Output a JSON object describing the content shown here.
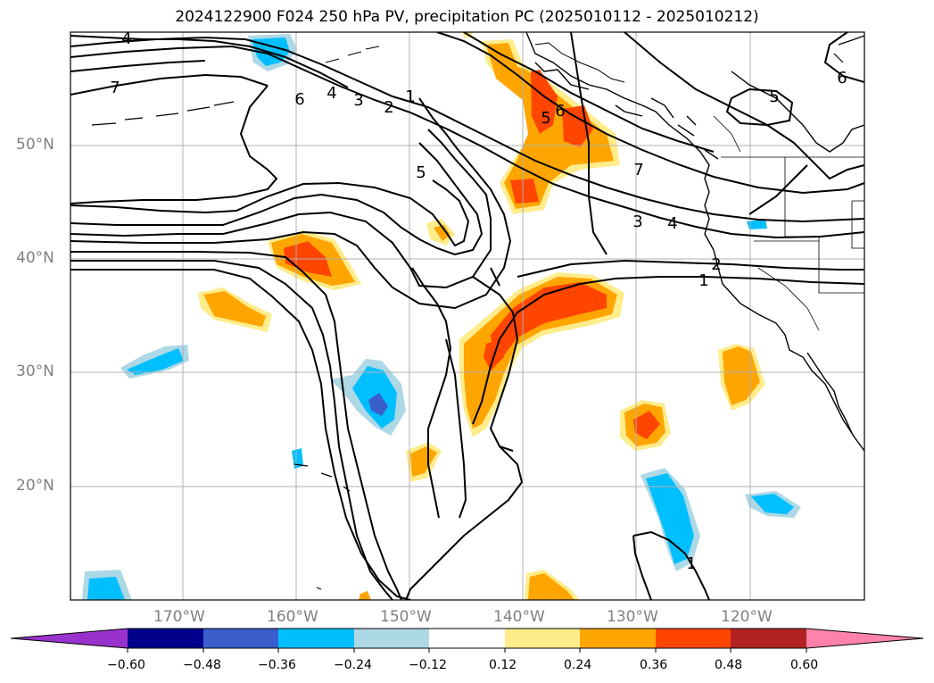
{
  "title": "2024122900 F024 250 hPa PV, precipitation PC (2025010112 - 2025010212)",
  "axes": {
    "lat_labels": [
      "50°N",
      "40°N",
      "30°N",
      "20°N"
    ],
    "lon_labels": [
      "170°W",
      "160°W",
      "150°W",
      "140°W",
      "130°W",
      "120°W"
    ]
  },
  "contour_labels": [
    "4",
    "7",
    "6",
    "4",
    "3",
    "2",
    "1",
    "5",
    "5",
    "6",
    "7",
    "3",
    "4",
    "2",
    "1",
    "1",
    "5",
    "6"
  ],
  "colorbar": {
    "tick_labels": [
      "−0.60",
      "−0.48",
      "−0.36",
      "−0.24",
      "−0.12",
      "0.12",
      "0.24",
      "0.36",
      "0.48",
      "0.60"
    ],
    "colors": [
      "#9932cc",
      "#00008b",
      "#3a5fcd",
      "#00bfff",
      "#add8e6",
      "#ffffff",
      "#ffec8b",
      "#ffa500",
      "#ff4500",
      "#b22222",
      "#ff82ab"
    ]
  }
}
